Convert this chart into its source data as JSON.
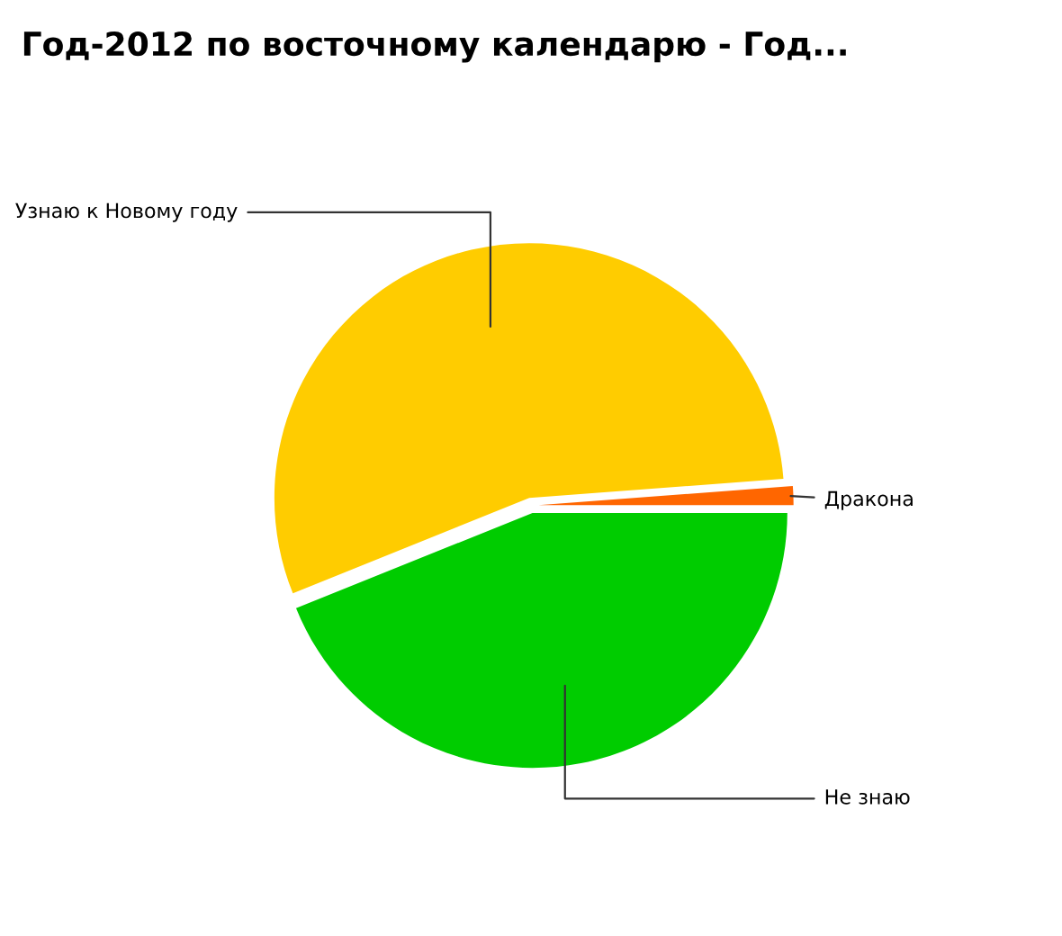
{
  "chart_data": {
    "type": "pie",
    "title": "Год-2012 по восточному календарю - Год...",
    "categories": [
      "Дракона",
      "Узнаю к Новому году",
      "Не знаю"
    ],
    "values": [
      1.2,
      54.9,
      43.9
    ],
    "colors": [
      "#ff6600",
      "#ffcc00",
      "#00cc00"
    ]
  }
}
